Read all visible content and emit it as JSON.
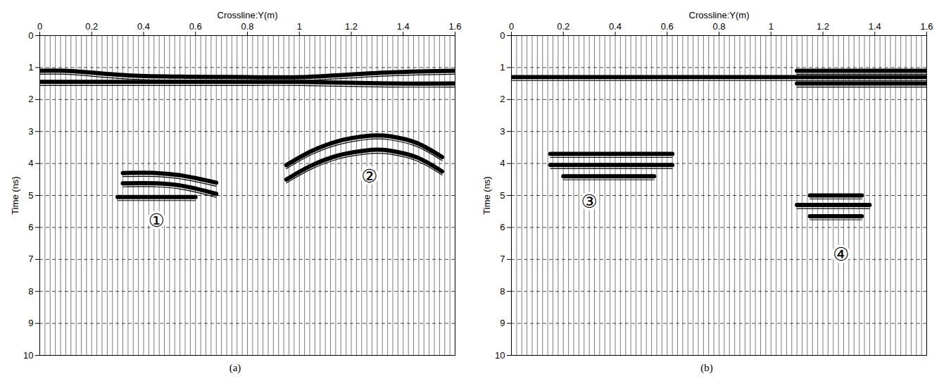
{
  "chart_data": [
    {
      "type": "line",
      "caption": "(a)",
      "x_label": "Crossline:Y(m)",
      "y_label": "Time (ns)",
      "xlim": [
        0,
        1.6
      ],
      "xticks": [
        0,
        0.2,
        0.4,
        0.6,
        0.8,
        1,
        1.2,
        1.4,
        1.6
      ],
      "ylim": [
        0,
        10
      ],
      "yticks": [
        0,
        1,
        2,
        3,
        4,
        5,
        6,
        7,
        8,
        9,
        10
      ],
      "grid": true,
      "trace_x": [
        0,
        0.02,
        0.04,
        0.06,
        0.08,
        0.1,
        0.12,
        0.14,
        0.16,
        0.18,
        0.2,
        0.22,
        0.24,
        0.26,
        0.28,
        0.3,
        0.32,
        0.34,
        0.36,
        0.38,
        0.4,
        0.42,
        0.44,
        0.46,
        0.48,
        0.5,
        0.52,
        0.54,
        0.56,
        0.58,
        0.6,
        0.62,
        0.64,
        0.66,
        0.68,
        0.7,
        0.72,
        0.74,
        0.76,
        0.78,
        0.8,
        0.82,
        0.84,
        0.86,
        0.88,
        0.9,
        0.92,
        0.94,
        0.96,
        0.98,
        1,
        1.02,
        1.04,
        1.06,
        1.08,
        1.1,
        1.12,
        1.14,
        1.16,
        1.18,
        1.2,
        1.22,
        1.24,
        1.26,
        1.28,
        1.3,
        1.32,
        1.34,
        1.36,
        1.38,
        1.4,
        1.42,
        1.44,
        1.46,
        1.48,
        1.5,
        1.52,
        1.54,
        1.56,
        1.58
      ],
      "series": [
        {
          "color": "#000000",
          "x": [
            0,
            0.1,
            0.35,
            0.8,
            1.0,
            1.35,
            1.6
          ],
          "values": [
            1.1,
            1.1,
            1.25,
            1.3,
            1.3,
            1.15,
            1.1
          ]
        },
        {
          "color": "#000000",
          "x": [
            0,
            0.1,
            0.35,
            0.8,
            1.0,
            1.35,
            1.6
          ],
          "values": [
            1.45,
            1.45,
            1.45,
            1.45,
            1.45,
            1.5,
            1.5
          ]
        },
        {
          "color": "#000000",
          "x": [
            0.32,
            0.45,
            0.55,
            0.68
          ],
          "values": [
            4.3,
            4.3,
            4.38,
            4.6
          ]
        },
        {
          "color": "#000000",
          "x": [
            0.32,
            0.45,
            0.55,
            0.68
          ],
          "values": [
            4.62,
            4.62,
            4.7,
            4.95
          ]
        },
        {
          "color": "#000000",
          "x": [
            0.3,
            0.6
          ],
          "values": [
            5.05,
            5.05
          ]
        },
        {
          "color": "#000000",
          "x": [
            0.95,
            1.05,
            1.15,
            1.25,
            1.3,
            1.35,
            1.45,
            1.55
          ],
          "values": [
            4.05,
            3.6,
            3.3,
            3.15,
            3.12,
            3.15,
            3.35,
            3.8
          ]
        },
        {
          "color": "#000000",
          "x": [
            0.95,
            1.05,
            1.15,
            1.25,
            1.3,
            1.35,
            1.45,
            1.55
          ],
          "values": [
            4.5,
            4.05,
            3.75,
            3.6,
            3.57,
            3.6,
            3.8,
            4.25
          ]
        }
      ],
      "annotations": [
        {
          "text": "①",
          "x": 0.45,
          "y": 5.8
        },
        {
          "text": "②",
          "x": 1.27,
          "y": 4.4
        }
      ]
    },
    {
      "type": "line",
      "caption": "(b)",
      "x_label": "Crossline:Y(m)",
      "y_label": "Time (ns)",
      "xlim": [
        0,
        1.6
      ],
      "xticks": [
        0,
        0.2,
        0.4,
        0.6,
        0.8,
        1,
        1.2,
        1.4,
        1.6
      ],
      "ylim": [
        0,
        10
      ],
      "yticks": [
        0,
        1,
        2,
        3,
        4,
        5,
        6,
        7,
        8,
        9,
        10
      ],
      "grid": true,
      "trace_x": [
        0,
        0.02,
        0.04,
        0.06,
        0.08,
        0.1,
        0.12,
        0.14,
        0.16,
        0.18,
        0.2,
        0.22,
        0.24,
        0.26,
        0.28,
        0.3,
        0.32,
        0.34,
        0.36,
        0.38,
        0.4,
        0.42,
        0.44,
        0.46,
        0.48,
        0.5,
        0.52,
        0.54,
        0.56,
        0.58,
        0.6,
        0.62,
        0.64,
        0.66,
        0.68,
        0.7,
        0.72,
        0.74,
        0.76,
        0.78,
        0.8,
        0.82,
        0.84,
        0.86,
        0.88,
        0.9,
        0.92,
        0.94,
        0.96,
        0.98,
        1,
        1.02,
        1.04,
        1.06,
        1.08,
        1.1,
        1.12,
        1.14,
        1.16,
        1.18,
        1.2,
        1.22,
        1.24,
        1.26,
        1.28,
        1.3,
        1.32,
        1.34,
        1.36,
        1.38,
        1.4,
        1.42,
        1.44,
        1.46,
        1.48,
        1.5,
        1.52,
        1.54,
        1.56,
        1.58
      ],
      "series": [
        {
          "color": "#000000",
          "x": [
            0,
            1.6
          ],
          "values": [
            1.3,
            1.3
          ]
        },
        {
          "color": "#000000",
          "x": [
            1.1,
            1.6
          ],
          "values": [
            1.1,
            1.1
          ]
        },
        {
          "color": "#000000",
          "x": [
            1.1,
            1.6
          ],
          "values": [
            1.5,
            1.5
          ]
        },
        {
          "color": "#000000",
          "x": [
            0.15,
            0.62
          ],
          "values": [
            3.7,
            3.7
          ]
        },
        {
          "color": "#000000",
          "x": [
            0.15,
            0.62
          ],
          "values": [
            4.05,
            4.05
          ]
        },
        {
          "color": "#000000",
          "x": [
            0.2,
            0.55
          ],
          "values": [
            4.4,
            4.4
          ]
        },
        {
          "color": "#000000",
          "x": [
            1.15,
            1.35
          ],
          "values": [
            5.0,
            5.0
          ]
        },
        {
          "color": "#000000",
          "x": [
            1.1,
            1.38
          ],
          "values": [
            5.3,
            5.3
          ]
        },
        {
          "color": "#000000",
          "x": [
            1.15,
            1.35
          ],
          "values": [
            5.65,
            5.65
          ]
        }
      ],
      "annotations": [
        {
          "text": "③",
          "x": 0.3,
          "y": 5.2
        },
        {
          "text": "④",
          "x": 1.27,
          "y": 6.85
        }
      ]
    }
  ]
}
